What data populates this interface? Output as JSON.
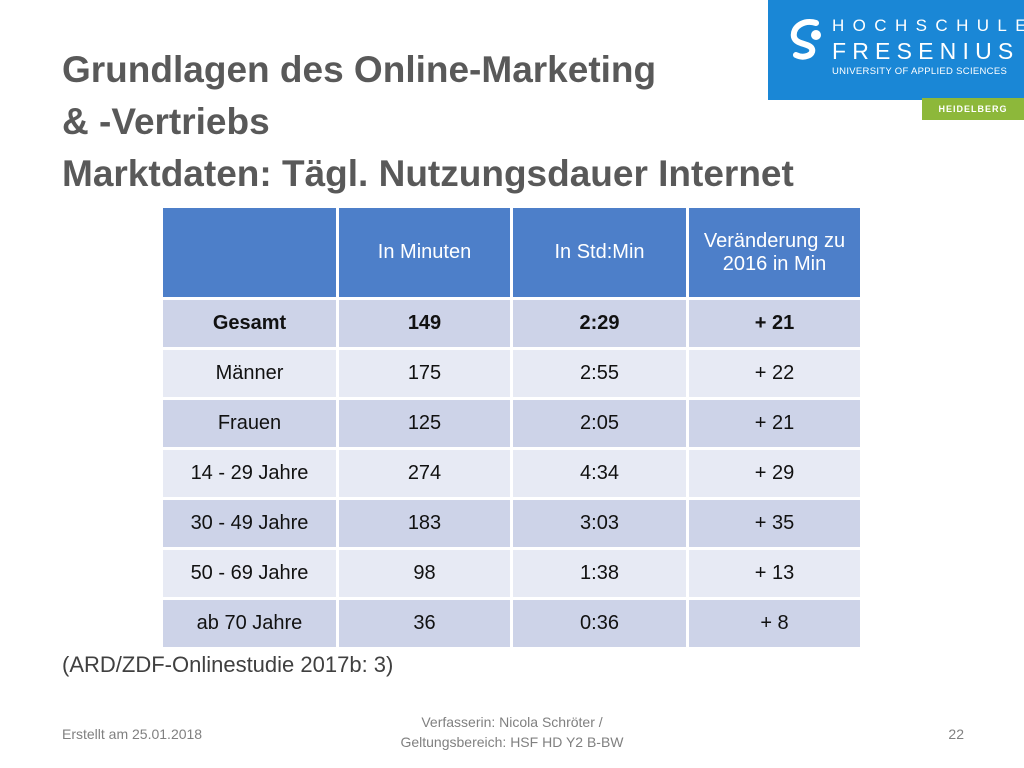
{
  "logo": {
    "line1": "HOCHSCHULE",
    "line2": "FRESENIUS",
    "line3": "UNIVERSITY OF APPLIED SCIENCES",
    "campus": "HEIDELBERG",
    "icon": "fresenius-swirl-icon",
    "colors": {
      "logo_bg": "#1a87d6",
      "campus_bg": "#8db83a"
    }
  },
  "title": {
    "line1": "Grundlagen des Online-Marketing",
    "line2": "& -Vertriebs",
    "line3": "Marktdaten: Tägl. Nutzungsdauer Internet"
  },
  "table": {
    "headers": [
      "",
      "In Minuten",
      "In Std:Min",
      "Veränderung zu 2016 in Min"
    ],
    "rows": [
      [
        "Gesamt",
        "149",
        "2:29",
        "+ 21"
      ],
      [
        "Männer",
        "175",
        "2:55",
        "+ 22"
      ],
      [
        "Frauen",
        "125",
        "2:05",
        "+ 21"
      ],
      [
        "14 - 29 Jahre",
        "274",
        "4:34",
        "+ 29"
      ],
      [
        "30 - 49 Jahre",
        "183",
        "3:03",
        "+ 35"
      ],
      [
        "50 - 69 Jahre",
        "98",
        "1:38",
        "+ 13"
      ],
      [
        "ab 70 Jahre",
        "36",
        "0:36",
        "+ 8"
      ]
    ],
    "colors": {
      "header_bg": "#4d7fc9",
      "row_dark": "#cdd3e8",
      "row_light": "#e7eaf4"
    }
  },
  "source": "(ARD/ZDF-Onlinestudie 2017b: 3)",
  "footer": {
    "date": "Erstellt am 25.01.2018",
    "author_line1": "Verfasserin: Nicola Schröter /",
    "author_line2": "Geltungsbereich: HSF HD Y2 B-BW",
    "page": "22"
  }
}
